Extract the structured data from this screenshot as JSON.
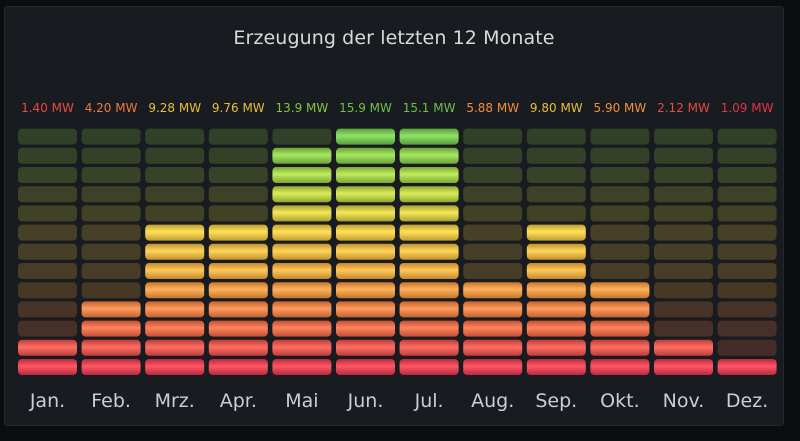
{
  "panel": {
    "title": "Erzeugung der letzten 12 Monate"
  },
  "chart_data": {
    "type": "bar",
    "title": "Erzeugung der letzten 12 Monate",
    "categories": [
      "Jan.",
      "Feb.",
      "Mrz.",
      "Apr.",
      "Mai",
      "Jun.",
      "Jul.",
      "Aug.",
      "Sep.",
      "Okt.",
      "Nov.",
      "Dez."
    ],
    "value_labels": [
      "1.40 MW",
      "4.20 MW",
      "9.28 MW",
      "9.76 MW",
      "13.9 MW",
      "15.9 MW",
      "15.1 MW",
      "5.88 MW",
      "9.80 MW",
      "5.90 MW",
      "2.12 MW",
      "1.09 MW"
    ],
    "values": [
      1.4,
      4.2,
      9.28,
      9.76,
      13.9,
      15.9,
      15.1,
      5.88,
      9.8,
      5.9,
      2.12,
      1.09
    ],
    "unit": "MW",
    "ylim": [
      0,
      16
    ],
    "grid": false,
    "legend": "none",
    "style": "lcd-gauge",
    "color_scale": [
      "#e0344a",
      "#ef6a3e",
      "#f2a23a",
      "#e8c23a",
      "#a4cc3e",
      "#6cc04a"
    ],
    "xlabel": "",
    "ylabel": ""
  }
}
